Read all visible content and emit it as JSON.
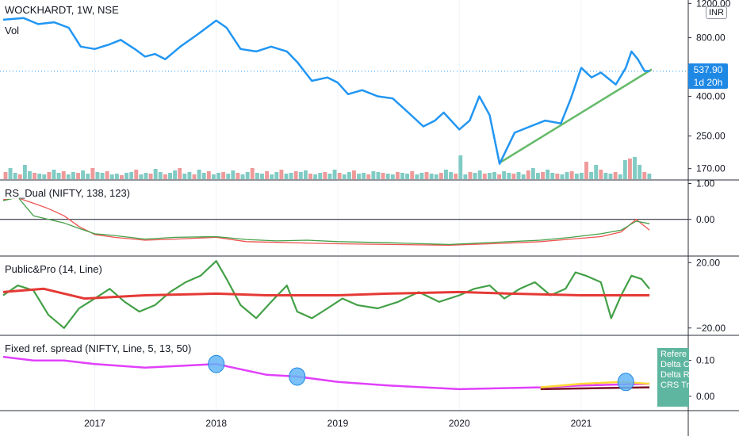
{
  "header": {
    "symbol": "WOCKHARDT, 1W, NSE",
    "vol_label": "Vol",
    "currency": "INR"
  },
  "price_badge": {
    "price": "537.90",
    "countdown": "1d 20h"
  },
  "panes": {
    "rs": {
      "title": "RS_Dual (NIFTY, 138, 123)"
    },
    "pp": {
      "title": "Public&Pro (14, Line)"
    },
    "frs": {
      "title": "Fixed ref. spread (NIFTY, Line, 5, 13, 50)"
    }
  },
  "legend_box": {
    "lines": [
      "Refere",
      "Delta C",
      "Delta R",
      "CRS Tr"
    ]
  },
  "colors": {
    "price": "#2196f3",
    "trend": "#66bb6a",
    "rs_green": "#43a047",
    "rs_red": "#ef5350",
    "pp_green": "#43a047",
    "pp_red": "#e53935",
    "frs_magenta": "#e040fb",
    "frs_yellow": "#fdd835",
    "frs_dark": "#7b1028",
    "marker": "#64b5f6"
  },
  "chart_data": [
    {
      "type": "line",
      "title": "WOCKHARDT, 1W, NSE",
      "ylabel": "INR",
      "y_scale": "log",
      "ylim": [
        150,
        1250
      ],
      "x_ticks": [
        "2017",
        "2018",
        "2019",
        "2020",
        "2021"
      ],
      "y_ticks": [
        1200,
        800,
        400,
        250,
        170
      ],
      "y_tick_labels": [
        "1200.00",
        "800.00",
        "400.00",
        "250.00",
        "170.00"
      ],
      "last_price_label": "537.90",
      "series": [
        {
          "values": [
            {
              "x": "2016-04-01",
              "y": 990
            },
            {
              "x": "2016-06-01",
              "y": 1010
            },
            {
              "x": "2016-07-15",
              "y": 940
            },
            {
              "x": "2016-09-01",
              "y": 960
            },
            {
              "x": "2016-10-15",
              "y": 900
            },
            {
              "x": "2016-11-20",
              "y": 720
            },
            {
              "x": "2017-01-01",
              "y": 700
            },
            {
              "x": "2017-02-15",
              "y": 740
            },
            {
              "x": "2017-03-20",
              "y": 780
            },
            {
              "x": "2017-05-01",
              "y": 700
            },
            {
              "x": "2017-06-01",
              "y": 640
            },
            {
              "x": "2017-07-01",
              "y": 660
            },
            {
              "x": "2017-08-01",
              "y": 620
            },
            {
              "x": "2017-09-15",
              "y": 720
            },
            {
              "x": "2017-11-01",
              "y": 820
            },
            {
              "x": "2018-01-01",
              "y": 980
            },
            {
              "x": "2018-02-01",
              "y": 900
            },
            {
              "x": "2018-03-15",
              "y": 700
            },
            {
              "x": "2018-05-01",
              "y": 680
            },
            {
              "x": "2018-06-15",
              "y": 720
            },
            {
              "x": "2018-08-01",
              "y": 680
            },
            {
              "x": "2018-09-01",
              "y": 600
            },
            {
              "x": "2018-10-15",
              "y": 480
            },
            {
              "x": "2018-12-01",
              "y": 500
            },
            {
              "x": "2019-01-01",
              "y": 470
            },
            {
              "x": "2019-02-01",
              "y": 410
            },
            {
              "x": "2019-03-15",
              "y": 430
            },
            {
              "x": "2019-05-01",
              "y": 400
            },
            {
              "x": "2019-06-15",
              "y": 390
            },
            {
              "x": "2019-08-01",
              "y": 330
            },
            {
              "x": "2019-09-15",
              "y": 280
            },
            {
              "x": "2019-10-20",
              "y": 300
            },
            {
              "x": "2019-11-15",
              "y": 330
            },
            {
              "x": "2020-01-01",
              "y": 270
            },
            {
              "x": "2020-02-01",
              "y": 300
            },
            {
              "x": "2020-03-01",
              "y": 400
            },
            {
              "x": "2020-04-01",
              "y": 320
            },
            {
              "x": "2020-05-01",
              "y": 180
            },
            {
              "x": "2020-06-15",
              "y": 260
            },
            {
              "x": "2020-08-01",
              "y": 280
            },
            {
              "x": "2020-09-15",
              "y": 300
            },
            {
              "x": "2020-11-01",
              "y": 290
            },
            {
              "x": "2020-12-01",
              "y": 390
            },
            {
              "x": "2021-01-01",
              "y": 560
            },
            {
              "x": "2021-02-01",
              "y": 500
            },
            {
              "x": "2021-03-01",
              "y": 530
            },
            {
              "x": "2021-04-15",
              "y": 460
            },
            {
              "x": "2021-05-15",
              "y": 560
            },
            {
              "x": "2021-06-01",
              "y": 680
            },
            {
              "x": "2021-06-20",
              "y": 620
            },
            {
              "x": "2021-07-10",
              "y": 540
            },
            {
              "x": "2021-07-25",
              "y": 540
            }
          ]
        },
        {
          "values": [
            {
              "x": "2020-05-01",
              "y": 182
            },
            {
              "x": "2021-08-01",
              "y": 550
            }
          ]
        }
      ],
      "volume": [
        9,
        14,
        8,
        6,
        18,
        10,
        8,
        7,
        6,
        9,
        12,
        8,
        10,
        6,
        9,
        8,
        11,
        7,
        14,
        9,
        8,
        10,
        6,
        7,
        5,
        8,
        9,
        12,
        6,
        8,
        7,
        13,
        9,
        6,
        8,
        11,
        14,
        7,
        9,
        6,
        12,
        8,
        10,
        6,
        8,
        9,
        7,
        11,
        8,
        6,
        9,
        14,
        8,
        7,
        10,
        6,
        9,
        12,
        7,
        8,
        10,
        9,
        11,
        7,
        6,
        8,
        9,
        7,
        12,
        8,
        6,
        9,
        11,
        7,
        8,
        6,
        10,
        9,
        8,
        7,
        6,
        9,
        8,
        7,
        10,
        6,
        8,
        9,
        7,
        6,
        8,
        12,
        9,
        7,
        30,
        6,
        9,
        8,
        11,
        7,
        8,
        9,
        6,
        10,
        8,
        7,
        9,
        6,
        11,
        14,
        8,
        9,
        12,
        8,
        7,
        6,
        9,
        10,
        7,
        8,
        22,
        9,
        18,
        12,
        8,
        7,
        9,
        6,
        24,
        26,
        28,
        18,
        9,
        7
      ]
    },
    {
      "type": "line",
      "title": "RS_Dual (NIFTY, 138, 123)",
      "ylim": [
        -1.0,
        1.1
      ],
      "y_ticks": [
        1.0,
        0.0
      ],
      "y_tick_labels": [
        "1.00",
        "0.00"
      ],
      "series": [
        {
          "values": [
            {
              "x": "2016-04-01",
              "y": 0.52
            },
            {
              "x": "2016-05-15",
              "y": 0.62
            },
            {
              "x": "2016-07-01",
              "y": 0.1
            },
            {
              "x": "2016-08-15",
              "y": 0.0
            },
            {
              "x": "2016-10-01",
              "y": -0.1
            },
            {
              "x": "2016-11-15",
              "y": -0.25
            },
            {
              "x": "2017-01-01",
              "y": -0.4
            },
            {
              "x": "2017-03-01",
              "y": -0.45
            },
            {
              "x": "2017-06-01",
              "y": -0.55
            },
            {
              "x": "2017-09-01",
              "y": -0.5
            },
            {
              "x": "2018-01-01",
              "y": -0.48
            },
            {
              "x": "2018-04-01",
              "y": -0.56
            },
            {
              "x": "2018-07-01",
              "y": -0.6
            },
            {
              "x": "2018-10-01",
              "y": -0.58
            },
            {
              "x": "2019-01-01",
              "y": -0.62
            },
            {
              "x": "2019-06-01",
              "y": -0.65
            },
            {
              "x": "2019-12-01",
              "y": -0.7
            },
            {
              "x": "2020-06-01",
              "y": -0.62
            },
            {
              "x": "2020-09-01",
              "y": -0.58
            },
            {
              "x": "2020-12-01",
              "y": -0.5
            },
            {
              "x": "2021-03-01",
              "y": -0.4
            },
            {
              "x": "2021-05-01",
              "y": -0.3
            },
            {
              "x": "2021-06-15",
              "y": -0.05
            },
            {
              "x": "2021-07-25",
              "y": -0.12
            }
          ]
        },
        {
          "values": [
            {
              "x": "2016-04-01",
              "y": 0.55
            },
            {
              "x": "2016-05-15",
              "y": 0.6
            },
            {
              "x": "2016-07-01",
              "y": 0.45
            },
            {
              "x": "2016-08-15",
              "y": 0.3
            },
            {
              "x": "2016-10-01",
              "y": 0.1
            },
            {
              "x": "2016-11-15",
              "y": -0.2
            },
            {
              "x": "2017-01-01",
              "y": -0.42
            },
            {
              "x": "2017-03-01",
              "y": -0.5
            },
            {
              "x": "2017-06-01",
              "y": -0.58
            },
            {
              "x": "2017-09-01",
              "y": -0.55
            },
            {
              "x": "2018-01-01",
              "y": -0.5
            },
            {
              "x": "2018-04-01",
              "y": -0.62
            },
            {
              "x": "2018-07-01",
              "y": -0.64
            },
            {
              "x": "2018-10-01",
              "y": -0.66
            },
            {
              "x": "2019-01-01",
              "y": -0.68
            },
            {
              "x": "2019-06-01",
              "y": -0.7
            },
            {
              "x": "2019-12-01",
              "y": -0.72
            },
            {
              "x": "2020-06-01",
              "y": -0.66
            },
            {
              "x": "2020-09-01",
              "y": -0.62
            },
            {
              "x": "2020-12-01",
              "y": -0.55
            },
            {
              "x": "2021-03-01",
              "y": -0.48
            },
            {
              "x": "2021-05-01",
              "y": -0.35
            },
            {
              "x": "2021-06-15",
              "y": 0.0
            },
            {
              "x": "2021-07-25",
              "y": -0.3
            }
          ]
        }
      ]
    },
    {
      "type": "line",
      "title": "Public&Pro (14, Line)",
      "ylim": [
        -24,
        24
      ],
      "y_ticks": [
        20,
        -20
      ],
      "y_tick_labels": [
        "20.00",
        "−20.00"
      ],
      "series": [
        {
          "values": [
            {
              "x": "2016-04-01",
              "y": 0
            },
            {
              "x": "2016-05-15",
              "y": 6
            },
            {
              "x": "2016-07-01",
              "y": 3
            },
            {
              "x": "2016-08-15",
              "y": -12
            },
            {
              "x": "2016-10-01",
              "y": -20
            },
            {
              "x": "2016-11-15",
              "y": -8
            },
            {
              "x": "2017-01-01",
              "y": -2
            },
            {
              "x": "2017-02-15",
              "y": 4
            },
            {
              "x": "2017-04-01",
              "y": -4
            },
            {
              "x": "2017-05-15",
              "y": -10
            },
            {
              "x": "2017-07-01",
              "y": -6
            },
            {
              "x": "2017-08-15",
              "y": 2
            },
            {
              "x": "2017-10-01",
              "y": 8
            },
            {
              "x": "2017-11-15",
              "y": 12
            },
            {
              "x": "2018-01-01",
              "y": 21
            },
            {
              "x": "2018-02-01",
              "y": 10
            },
            {
              "x": "2018-03-15",
              "y": -6
            },
            {
              "x": "2018-05-01",
              "y": -14
            },
            {
              "x": "2018-06-15",
              "y": -4
            },
            {
              "x": "2018-08-01",
              "y": 6
            },
            {
              "x": "2018-09-01",
              "y": -10
            },
            {
              "x": "2018-10-15",
              "y": -14
            },
            {
              "x": "2018-12-01",
              "y": -8
            },
            {
              "x": "2019-01-15",
              "y": -2
            },
            {
              "x": "2019-03-01",
              "y": -6
            },
            {
              "x": "2019-05-01",
              "y": -8
            },
            {
              "x": "2019-07-01",
              "y": -4
            },
            {
              "x": "2019-09-01",
              "y": 2
            },
            {
              "x": "2019-11-01",
              "y": -4
            },
            {
              "x": "2020-01-01",
              "y": 0
            },
            {
              "x": "2020-02-15",
              "y": 4
            },
            {
              "x": "2020-04-01",
              "y": 6
            },
            {
              "x": "2020-05-15",
              "y": -2
            },
            {
              "x": "2020-07-01",
              "y": 4
            },
            {
              "x": "2020-08-15",
              "y": 8
            },
            {
              "x": "2020-10-01",
              "y": 0
            },
            {
              "x": "2020-11-15",
              "y": 4
            },
            {
              "x": "2020-12-15",
              "y": 14
            },
            {
              "x": "2021-01-15",
              "y": 12
            },
            {
              "x": "2021-03-01",
              "y": 8
            },
            {
              "x": "2021-04-01",
              "y": -14
            },
            {
              "x": "2021-05-01",
              "y": 0
            },
            {
              "x": "2021-06-01",
              "y": 12
            },
            {
              "x": "2021-07-01",
              "y": 10
            },
            {
              "x": "2021-07-25",
              "y": 4
            }
          ]
        },
        {
          "values": [
            {
              "x": "2016-04-01",
              "y": 2
            },
            {
              "x": "2016-08-01",
              "y": 4
            },
            {
              "x": "2016-12-01",
              "y": -2
            },
            {
              "x": "2017-06-01",
              "y": 0
            },
            {
              "x": "2018-01-01",
              "y": 1
            },
            {
              "x": "2018-06-01",
              "y": 0
            },
            {
              "x": "2019-01-01",
              "y": 0
            },
            {
              "x": "2019-06-01",
              "y": 1
            },
            {
              "x": "2020-01-01",
              "y": 2
            },
            {
              "x": "2020-06-01",
              "y": 1
            },
            {
              "x": "2021-01-01",
              "y": 0
            },
            {
              "x": "2021-07-25",
              "y": 0
            }
          ]
        }
      ]
    },
    {
      "type": "line",
      "title": "Fixed ref. spread (NIFTY, Line, 5, 13, 50)",
      "ylim": [
        -0.04,
        0.17
      ],
      "y_ticks": [
        0.1,
        0.0
      ],
      "y_tick_labels": [
        "0.10",
        "0.00"
      ],
      "series": [
        {
          "values": [
            {
              "x": "2016-04-01",
              "y": 0.11
            },
            {
              "x": "2016-07-01",
              "y": 0.1
            },
            {
              "x": "2016-10-01",
              "y": 0.1
            },
            {
              "x": "2017-01-01",
              "y": 0.09
            },
            {
              "x": "2017-06-01",
              "y": 0.08
            },
            {
              "x": "2018-01-01",
              "y": 0.09
            },
            {
              "x": "2018-06-01",
              "y": 0.06
            },
            {
              "x": "2018-09-01",
              "y": 0.055
            },
            {
              "x": "2019-01-01",
              "y": 0.04
            },
            {
              "x": "2019-06-01",
              "y": 0.03
            },
            {
              "x": "2020-01-01",
              "y": 0.02
            },
            {
              "x": "2020-09-01",
              "y": 0.025
            },
            {
              "x": "2021-01-01",
              "y": 0.03
            },
            {
              "x": "2021-07-25",
              "y": 0.035
            }
          ]
        },
        {
          "values": [
            {
              "x": "2020-09-01",
              "y": 0.025
            },
            {
              "x": "2021-01-01",
              "y": 0.035
            },
            {
              "x": "2021-05-01",
              "y": 0.04
            },
            {
              "x": "2021-07-25",
              "y": 0.035
            }
          ]
        },
        {
          "values": [
            {
              "x": "2020-09-01",
              "y": 0.02
            },
            {
              "x": "2021-07-25",
              "y": 0.025
            }
          ]
        }
      ],
      "markers": [
        {
          "x": "2018-01-01",
          "y": 0.09
        },
        {
          "x": "2018-09-01",
          "y": 0.055
        },
        {
          "x": "2021-05-15",
          "y": 0.04
        }
      ]
    }
  ]
}
